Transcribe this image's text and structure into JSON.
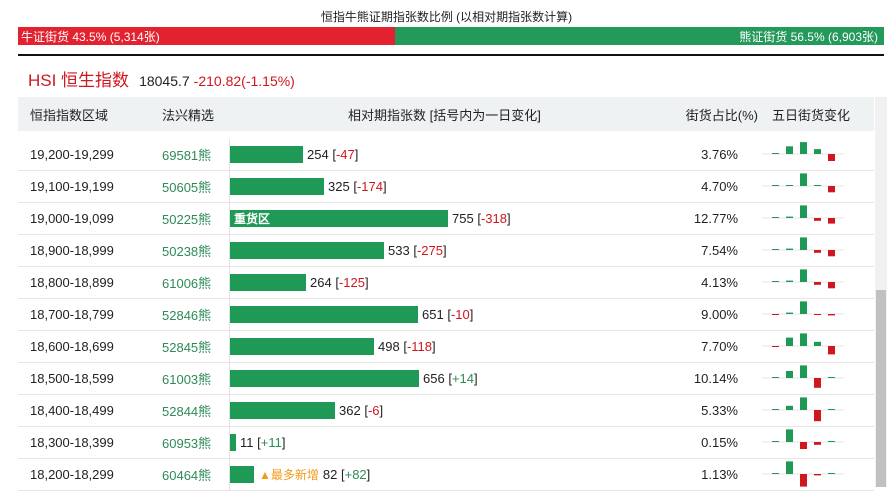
{
  "header": {
    "title": "恒指牛熊证期指张数比例 (以相对期指张数计算)",
    "bull_label": "牛证街货 43.5% (5,314张)",
    "bear_label": "熊证街货 56.5% (6,903张)",
    "bull_fraction": 0.435,
    "bull_color": "#e2222f",
    "bear_color": "#23995a"
  },
  "index": {
    "name": "HSI 恒生指数",
    "price": "18045.7",
    "change": "-210.82(-1.15%)"
  },
  "table": {
    "columns": [
      "恒指指数区域",
      "法兴精选",
      "相对期指张数 [括号内为一日变化]",
      "街货占比(%)",
      "五日街货变化"
    ],
    "rows": [
      {
        "range": "19,200-19,299",
        "code": "69581熊",
        "count": 254,
        "count_text": "254",
        "change": "-47",
        "pct": "3.76%",
        "tag": "",
        "spark": [
          0,
          0.55,
          0.85,
          0.35,
          -0.5
        ]
      },
      {
        "range": "19,100-19,199",
        "code": "50605熊",
        "count": 325,
        "count_text": "325",
        "change": "-174",
        "pct": "4.70%",
        "tag": "",
        "spark": [
          0,
          0.05,
          0.9,
          0.05,
          -0.45
        ]
      },
      {
        "range": "19,000-19,099",
        "code": "50225熊",
        "count": 755,
        "count_text": "755",
        "change": "-318",
        "pct": "12.77%",
        "tag": "重货区",
        "spark": [
          0,
          0.1,
          0.9,
          -0.2,
          -0.4
        ]
      },
      {
        "range": "18,900-18,999",
        "code": "50238熊",
        "count": 533,
        "count_text": "533",
        "change": "-275",
        "pct": "7.54%",
        "tag": "",
        "spark": [
          0,
          0.1,
          0.9,
          -0.2,
          -0.45
        ]
      },
      {
        "range": "18,800-18,899",
        "code": "61006熊",
        "count": 264,
        "count_text": "264",
        "change": "-125",
        "pct": "4.13%",
        "tag": "",
        "spark": [
          0,
          0.1,
          0.9,
          -0.2,
          -0.45
        ]
      },
      {
        "range": "18,700-18,799",
        "code": "52846熊",
        "count": 651,
        "count_text": "651",
        "change": "-10",
        "pct": "9.00%",
        "tag": "",
        "spark": [
          -0.05,
          0.1,
          0.9,
          -0.05,
          -0.1
        ]
      },
      {
        "range": "18,600-18,699",
        "code": "52845熊",
        "count": 498,
        "count_text": "498",
        "change": "-118",
        "pct": "7.70%",
        "tag": "",
        "spark": [
          -0.05,
          0.6,
          0.9,
          0.3,
          -0.6
        ]
      },
      {
        "range": "18,500-18,599",
        "code": "61003熊",
        "count": 656,
        "count_text": "656",
        "change": "+14",
        "pct": "10.14%",
        "tag": "",
        "spark": [
          0,
          0.5,
          0.9,
          -0.7,
          0.05
        ]
      },
      {
        "range": "18,400-18,499",
        "code": "52844熊",
        "count": 362,
        "count_text": "362",
        "change": "-6",
        "pct": "5.33%",
        "tag": "",
        "spark": [
          0,
          0.3,
          0.9,
          -0.8,
          0.05
        ]
      },
      {
        "range": "18,300-18,399",
        "code": "60953熊",
        "count": 11,
        "count_text": "11",
        "change": "+11",
        "pct": "0.15%",
        "tag": "",
        "spark": [
          0,
          0.9,
          -0.5,
          -0.2,
          0.05
        ]
      },
      {
        "range": "18,200-18,299",
        "code": "60464熊",
        "count": 82,
        "count_text": "82",
        "change": "+82",
        "pct": "1.13%",
        "tag": "最多新增",
        "spark": [
          0,
          0.9,
          -0.9,
          -0.1,
          0.05
        ]
      }
    ]
  }
}
